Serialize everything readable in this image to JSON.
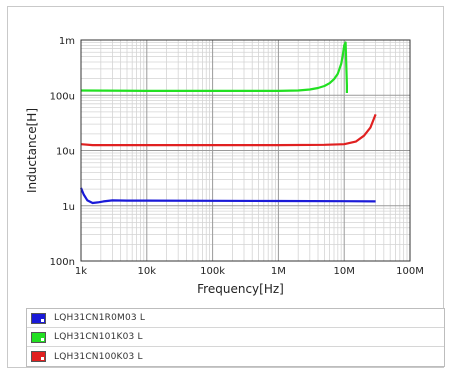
{
  "chart_data": {
    "type": "line",
    "title": "",
    "xlabel": "Frequency[Hz]",
    "ylabel": "Inductance[H]",
    "x_scale": "log",
    "y_scale": "log",
    "xlim": [
      1000,
      100000000
    ],
    "ylim": [
      1e-07,
      0.001
    ],
    "grid": true,
    "legend_position": "below",
    "x_ticks": [
      {
        "label": "1k",
        "value": 1000
      },
      {
        "label": "10k",
        "value": 10000
      },
      {
        "label": "100k",
        "value": 100000
      },
      {
        "label": "1M",
        "value": 1000000
      },
      {
        "label": "10M",
        "value": 10000000
      },
      {
        "label": "100M",
        "value": 100000000
      }
    ],
    "y_ticks": [
      {
        "label": "1m",
        "value": 0.001
      },
      {
        "label": "100u",
        "value": 0.0001
      },
      {
        "label": "10u",
        "value": 1e-05
      },
      {
        "label": "1u",
        "value": 1e-06
      },
      {
        "label": "100n",
        "value": 1e-07
      }
    ],
    "series": [
      {
        "name": "LQH31CN1R0M03  L",
        "color": "#1a1ad8",
        "x": [
          1000,
          1100,
          1250,
          1500,
          1800,
          2200,
          3000,
          5000,
          10000,
          100000,
          1000000,
          10000000,
          30000000
        ],
        "y": [
          2.1e-06,
          1.6e-06,
          1.25e-06,
          1.12e-06,
          1.15e-06,
          1.2e-06,
          1.25e-06,
          1.24e-06,
          1.24e-06,
          1.23e-06,
          1.22e-06,
          1.21e-06,
          1.2e-06
        ]
      },
      {
        "name": "LQH31CN101K03  L",
        "color": "#22e022",
        "x": [
          1000,
          10000,
          100000,
          1000000,
          2000000,
          3000000,
          4000000,
          5000000,
          6000000,
          7000000,
          8000000,
          9000000,
          9500000,
          10000000,
          10500000,
          11000000,
          11000000
        ],
        "y": [
          0.000122,
          0.00012,
          0.00012,
          0.00012,
          0.000122,
          0.000127,
          0.000135,
          0.000147,
          0.000165,
          0.000195,
          0.000245,
          0.00037,
          0.00052,
          0.0008,
          0.0009,
          0.00015,
          0.00011
        ]
      },
      {
        "name": "LQH31CN100K03  L",
        "color": "#e02020",
        "x": [
          1000,
          1500,
          10000,
          100000,
          1000000,
          5000000,
          10000000,
          15000000,
          20000000,
          25000000,
          30000000
        ],
        "y": [
          1.3e-05,
          1.25e-05,
          1.25e-05,
          1.25e-05,
          1.25e-05,
          1.27e-05,
          1.3e-05,
          1.45e-05,
          1.85e-05,
          2.6e-05,
          4.5e-05
        ]
      }
    ]
  }
}
